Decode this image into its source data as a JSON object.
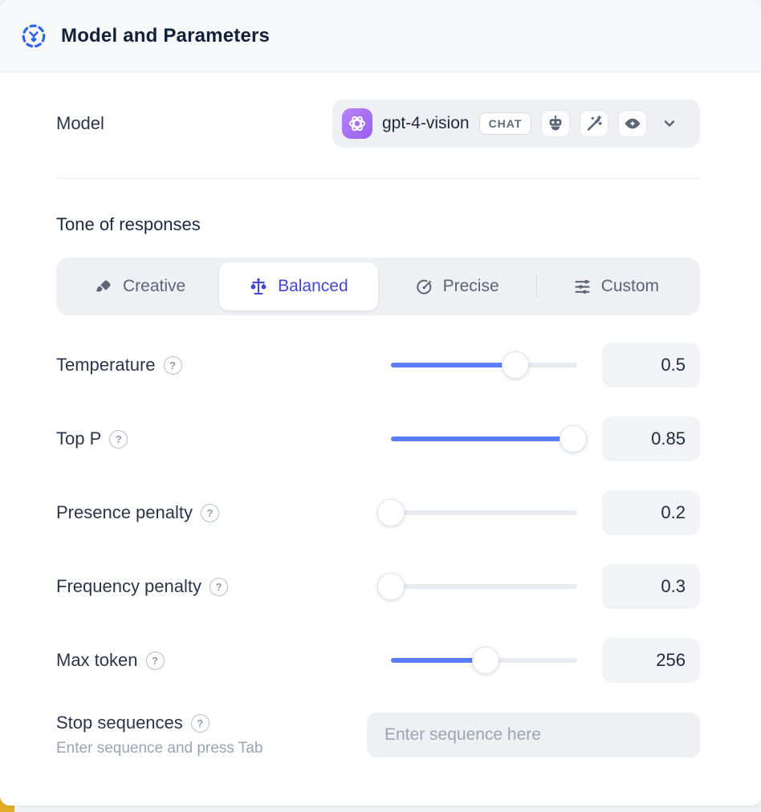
{
  "header": {
    "title": "Model and Parameters"
  },
  "model_row": {
    "label": "Model",
    "selected_model": "gpt-4-vision",
    "badge": "CHAT",
    "capability_icons": [
      "robot-icon",
      "magic-wand-icon",
      "eye-icon"
    ],
    "provider_icon": "openai-logo-icon"
  },
  "tone": {
    "section_title": "Tone of responses",
    "options": [
      {
        "label": "Creative",
        "icon": "paintbrush-icon",
        "selected": false
      },
      {
        "label": "Balanced",
        "icon": "balance-scale-icon",
        "selected": true
      },
      {
        "label": "Precise",
        "icon": "target-dart-icon",
        "selected": false
      },
      {
        "label": "Custom",
        "icon": "sliders-icon",
        "selected": false
      }
    ]
  },
  "parameters": [
    {
      "label": "Temperature",
      "value": "0.5",
      "fill_pct": 67
    },
    {
      "label": "Top P",
      "value": "0.85",
      "fill_pct": 98
    },
    {
      "label": "Presence penalty",
      "value": "0.2",
      "fill_pct": 0
    },
    {
      "label": "Frequency penalty",
      "value": "0.3",
      "fill_pct": 0
    },
    {
      "label": "Max token",
      "value": "256",
      "fill_pct": 51
    }
  ],
  "stop_sequences": {
    "label": "Stop sequences",
    "helper": "Enter sequence and press Tab",
    "placeholder": "Enter sequence here"
  },
  "ui": {
    "help_symbol": "?"
  },
  "colors": {
    "slider_fill": "#5b7cfa",
    "selected_tone": "#4446d4",
    "header_icon_blue": "#2f62ea",
    "openai_purple": "#9a5ff0",
    "corner_accent_yellow": "#e2ac25",
    "field_bg": "#eef0f4",
    "header_bg": "#f7f8fa"
  }
}
